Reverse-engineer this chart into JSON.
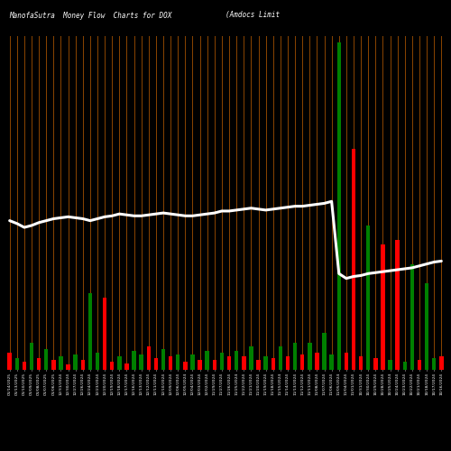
{
  "title_left": "ManofaSutra  Money Flow  Charts for DOX",
  "title_right": "(Amdocs Limit",
  "bg_color": "#000000",
  "grid_color": "#8B4500",
  "line_color": "#ffffff",
  "bar_heights": [
    18,
    12,
    8,
    28,
    12,
    22,
    10,
    14,
    6,
    16,
    10,
    80,
    18,
    75,
    8,
    14,
    7,
    20,
    16,
    24,
    12,
    22,
    14,
    16,
    8,
    16,
    10,
    20,
    10,
    18,
    14,
    20,
    14,
    24,
    10,
    14,
    12,
    24,
    14,
    28,
    16,
    28,
    18,
    38,
    16,
    340,
    18,
    230,
    14,
    150,
    12,
    130,
    10,
    135,
    8,
    110,
    10,
    90,
    12,
    14
  ],
  "bar_colors": [
    "red",
    "green",
    "red",
    "green",
    "red",
    "green",
    "red",
    "green",
    "red",
    "green",
    "red",
    "green",
    "green",
    "red",
    "red",
    "green",
    "red",
    "green",
    "green",
    "red",
    "red",
    "green",
    "red",
    "green",
    "red",
    "green",
    "red",
    "green",
    "red",
    "green",
    "red",
    "green",
    "red",
    "green",
    "red",
    "green",
    "red",
    "green",
    "red",
    "green",
    "red",
    "green",
    "red",
    "green",
    "green",
    "green",
    "red",
    "red",
    "red",
    "green",
    "red",
    "red",
    "green",
    "red",
    "green",
    "green",
    "red",
    "green",
    "green",
    "red"
  ],
  "line_y_raw": [
    155,
    152,
    148,
    150,
    153,
    155,
    157,
    158,
    159,
    158,
    157,
    155,
    157,
    159,
    160,
    162,
    161,
    160,
    160,
    161,
    162,
    163,
    162,
    161,
    160,
    160,
    161,
    162,
    163,
    165,
    165,
    166,
    167,
    168,
    167,
    166,
    167,
    168,
    169,
    170,
    170,
    171,
    172,
    173,
    175,
    100,
    95,
    97,
    98,
    100,
    101,
    102,
    103,
    104,
    105,
    106,
    108,
    110,
    112,
    113
  ],
  "xlabels": [
    "01/14/2025",
    "01/13/2025",
    "01/10/2025",
    "01/09/2025",
    "01/08/2025",
    "01/07/2025",
    "01/06/2025",
    "12/31/2024",
    "12/30/2024",
    "12/27/2024",
    "12/26/2024",
    "12/24/2024",
    "12/23/2024",
    "12/20/2024",
    "12/19/2024",
    "12/18/2024",
    "12/17/2024",
    "12/16/2024",
    "12/13/2024",
    "12/12/2024",
    "12/11/2024",
    "12/10/2024",
    "12/09/2024",
    "12/06/2024",
    "12/05/2024",
    "12/04/2024",
    "12/03/2024",
    "12/02/2024",
    "11/29/2024",
    "11/27/2024",
    "11/26/2024",
    "11/25/2024",
    "11/22/2024",
    "11/21/2024",
    "11/20/2024",
    "11/19/2024",
    "11/18/2024",
    "11/15/2024",
    "11/14/2024",
    "11/13/2024",
    "11/12/2024",
    "11/11/2024",
    "11/08/2024",
    "11/07/2024",
    "11/06/2024",
    "11/05/2024",
    "11/04/2024",
    "11/01/2024",
    "10/31/2024",
    "10/30/2024",
    "10/29/2024",
    "10/28/2024",
    "10/25/2024",
    "10/24/2024",
    "10/23/2024",
    "10/22/2024",
    "10/21/2024",
    "10/18/2024",
    "10/17/2024",
    "10/16/2024"
  ]
}
